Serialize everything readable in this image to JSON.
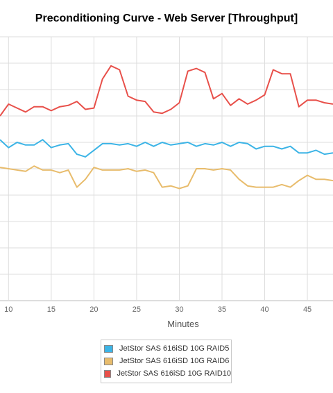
{
  "chart_data": {
    "type": "line",
    "title": "Preconditioning Curve - Web Server [Throughput]",
    "xlabel": "Minutes",
    "ylabel": "",
    "xlim": [
      9,
      48
    ],
    "ylim": [
      0,
      10
    ],
    "x_ticks": [
      10,
      15,
      20,
      25,
      30,
      35,
      40,
      45
    ],
    "grid": true,
    "legend_position": "bottom",
    "x": [
      9,
      10,
      11,
      12,
      13,
      14,
      15,
      16,
      17,
      18,
      19,
      20,
      21,
      22,
      23,
      24,
      25,
      26,
      27,
      28,
      29,
      30,
      31,
      32,
      33,
      34,
      35,
      36,
      37,
      38,
      39,
      40,
      41,
      42,
      43,
      44,
      45,
      46,
      47,
      48
    ],
    "series": [
      {
        "name": "JetStor SAS 616iSD 10G RAID5",
        "color": "#3cb4e6",
        "values": [
          6.1,
          5.8,
          6.0,
          5.9,
          5.9,
          6.1,
          5.8,
          5.9,
          5.95,
          5.55,
          5.45,
          5.7,
          5.95,
          5.95,
          5.9,
          5.95,
          5.85,
          6.0,
          5.85,
          6.0,
          5.9,
          5.95,
          6.0,
          5.85,
          5.95,
          5.9,
          6.0,
          5.85,
          6.0,
          5.95,
          5.75,
          5.85,
          5.85,
          5.75,
          5.85,
          5.6,
          5.6,
          5.7,
          5.55,
          5.6
        ]
      },
      {
        "name": "JetStor SAS 616iSD 10G RAID6",
        "color": "#e8bc6c",
        "values": [
          5.05,
          5.0,
          4.95,
          4.9,
          5.1,
          4.95,
          4.95,
          4.85,
          4.95,
          4.3,
          4.6,
          5.05,
          4.95,
          4.95,
          4.95,
          5.0,
          4.9,
          4.95,
          4.85,
          4.3,
          4.35,
          4.25,
          4.35,
          5.0,
          5.0,
          4.95,
          5.0,
          4.95,
          4.6,
          4.35,
          4.3,
          4.3,
          4.3,
          4.4,
          4.3,
          4.55,
          4.75,
          4.6,
          4.6,
          4.55
        ]
      },
      {
        "name": "JetStor SAS 616iSD 10G RAID10",
        "color": "#e8504a",
        "values": [
          7.0,
          7.45,
          7.3,
          7.15,
          7.35,
          7.35,
          7.2,
          7.35,
          7.4,
          7.55,
          7.25,
          7.3,
          8.4,
          8.9,
          8.75,
          7.75,
          7.6,
          7.55,
          7.15,
          7.1,
          7.25,
          7.5,
          8.7,
          8.8,
          8.65,
          7.65,
          7.85,
          7.4,
          7.65,
          7.45,
          7.6,
          7.8,
          8.75,
          8.6,
          8.6,
          7.35,
          7.6,
          7.6,
          7.5,
          7.45
        ]
      }
    ]
  }
}
